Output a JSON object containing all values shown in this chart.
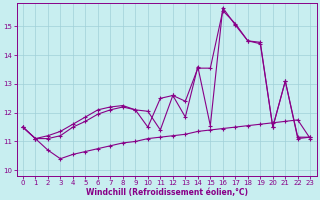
{
  "bg_color": "#c8eef0",
  "line_color": "#880088",
  "grid_color": "#a0d0d8",
  "xlabel": "Windchill (Refroidissement éolien,°C)",
  "xlabel_color": "#880088",
  "tick_color": "#880088",
  "xlim": [
    -0.5,
    23.5
  ],
  "ylim": [
    9.8,
    15.8
  ],
  "yticks": [
    10,
    11,
    12,
    13,
    14,
    15
  ],
  "xticks": [
    0,
    1,
    2,
    3,
    4,
    5,
    6,
    7,
    8,
    9,
    10,
    11,
    12,
    13,
    14,
    15,
    16,
    17,
    18,
    19,
    20,
    21,
    22,
    23
  ],
  "line1_x": [
    0,
    1,
    2,
    3,
    4,
    5,
    6,
    7,
    8,
    9,
    10,
    11,
    12,
    13,
    14,
    15,
    16,
    17,
    18,
    19,
    20,
    21,
    22,
    23
  ],
  "line1_y": [
    11.5,
    11.1,
    10.7,
    10.4,
    10.55,
    10.65,
    10.75,
    10.85,
    10.95,
    11.0,
    11.1,
    11.15,
    11.2,
    11.25,
    11.35,
    11.4,
    11.45,
    11.5,
    11.55,
    11.6,
    11.65,
    11.7,
    11.75,
    11.1
  ],
  "line2_x": [
    0,
    1,
    2,
    3,
    4,
    5,
    6,
    7,
    8,
    9,
    10,
    11,
    12,
    13,
    14,
    15,
    16,
    17,
    18,
    19,
    20,
    21,
    22,
    23
  ],
  "line2_y": [
    11.5,
    11.1,
    11.1,
    11.2,
    11.5,
    11.7,
    11.95,
    12.1,
    12.2,
    12.1,
    11.5,
    12.5,
    12.6,
    12.4,
    13.55,
    13.55,
    15.55,
    15.1,
    14.5,
    14.4,
    11.5,
    13.1,
    11.15,
    11.15
  ],
  "line3_x": [
    0,
    1,
    2,
    3,
    4,
    5,
    6,
    7,
    8,
    9,
    10,
    11,
    12,
    13,
    14,
    15,
    16,
    17,
    18,
    19,
    20,
    21,
    22,
    23
  ],
  "line3_y": [
    11.5,
    11.1,
    11.2,
    11.35,
    11.6,
    11.85,
    12.1,
    12.2,
    12.25,
    12.1,
    12.05,
    11.4,
    12.6,
    11.85,
    13.6,
    11.55,
    15.65,
    15.05,
    14.5,
    14.45,
    11.5,
    13.1,
    11.1,
    11.15
  ]
}
